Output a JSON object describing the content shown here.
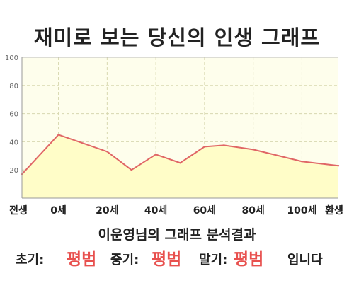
{
  "title": "재미로 보는 당신의 인생 그래프",
  "chart_data": {
    "type": "area",
    "x_labels": [
      "전생",
      "0세",
      "20세",
      "40세",
      "60세",
      "80세",
      "100세",
      "환생"
    ],
    "x": [
      -15,
      0,
      20,
      40,
      60,
      80,
      100,
      115
    ],
    "points": [
      {
        "x": -15,
        "y": 17
      },
      {
        "x": 0,
        "y": 45
      },
      {
        "x": 20,
        "y": 33
      },
      {
        "x": 30,
        "y": 20
      },
      {
        "x": 40,
        "y": 31
      },
      {
        "x": 50,
        "y": 25
      },
      {
        "x": 60,
        "y": 36.5
      },
      {
        "x": 68,
        "y": 37.5
      },
      {
        "x": 80,
        "y": 34.5
      },
      {
        "x": 100,
        "y": 26
      },
      {
        "x": 115,
        "y": 23
      }
    ],
    "y_ticks": [
      20,
      40,
      60,
      80,
      100
    ],
    "ylim": [
      0,
      100
    ],
    "grid": true,
    "fill_color": "#fffdc8",
    "line_color": "#e06666",
    "plot_bg": "#fefeec"
  },
  "summary": {
    "text": "이운영님의 그래프 분석결과"
  },
  "verdict": {
    "early_label": "초기:",
    "early_value": "평범",
    "mid_label": "중기:",
    "mid_value": "평범",
    "late_label": "말기:",
    "late_value": "평범",
    "suffix": "입니다"
  },
  "colors": {
    "accent": "#e8504e",
    "text": "#222222"
  }
}
